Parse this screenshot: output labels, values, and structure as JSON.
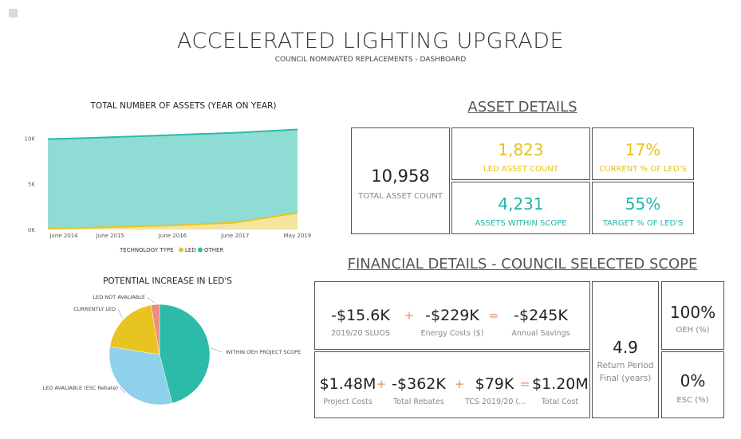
{
  "header": {
    "title": "ACCELERATED LIGHTING UPGRADE",
    "subtitle": "COUNCIL NOMINATED REPLACEMENTS  - DASHBOARD"
  },
  "colors": {
    "led": "#e8c421",
    "other": "#2bbba8",
    "other_fill": "#8fdcd4",
    "led_fill": "#f3e4a0",
    "pie_other": "#8fd0ea",
    "pie_na": "#ee8a7e",
    "operator": "#f08a5a"
  },
  "chart_data": [
    {
      "type": "area",
      "title": "TOTAL NUMBER OF ASSETS (YEAR ON YEAR)",
      "categories": [
        "June 2014",
        "June 2015",
        "June 2016",
        "June 2017",
        "May 2019"
      ],
      "yticks": [
        "0K",
        "5K",
        "10K"
      ],
      "ylim": [
        0,
        11000
      ],
      "legend_title": "TECHNOLOGY TYPE",
      "legend_position": "bottom",
      "series": [
        {
          "name": "LED",
          "values": [
            100,
            250,
            450,
            750,
            1823
          ]
        },
        {
          "name": "OTHER",
          "values": [
            9800,
            9850,
            9900,
            9850,
            9135
          ]
        }
      ]
    },
    {
      "type": "pie",
      "title": "POTENTIAL INCREASE IN LED'S",
      "slices": [
        {
          "label": "WITHIN OEH PROJECT SCOPE",
          "value": 4231
        },
        {
          "label": "LED AVALIABLE (ESC Rebate)",
          "value": 2900
        },
        {
          "label": "CURRENTLY LED",
          "value": 1823
        },
        {
          "label": "LED NOT AVALIABLE",
          "value": 250
        }
      ]
    }
  ],
  "asset_details": {
    "heading": "ASSET DETAILS",
    "total": {
      "value": "10,958",
      "label": "TOTAL ASSET COUNT"
    },
    "led_count": {
      "value": "1,823",
      "label": "LED ASSET COUNT"
    },
    "current_pct": {
      "value": "17%",
      "label": "CURRENT % OF LED'S"
    },
    "within_scope": {
      "value": "4,231",
      "label": "ASSETS WITHIN SCOPE"
    },
    "target_pct": {
      "value": "55%",
      "label": "TARGET % OF LED'S"
    }
  },
  "financial": {
    "heading": "FINANCIAL DETAILS - COUNCIL SELECTED SCOPE",
    "row1": [
      {
        "value": "-$15.6K",
        "label": "2019/20 SLUOS"
      },
      {
        "value": "-$229K",
        "label": "Energy Costs ($)"
      },
      {
        "value": "-$245K",
        "label": "Annual Savings"
      }
    ],
    "row1_ops": [
      "+",
      "="
    ],
    "row2": [
      {
        "value": "$1.48M",
        "label": "Project Costs"
      },
      {
        "value": "-$362K",
        "label": "Total Rebates"
      },
      {
        "value": "$79K",
        "label": "TCS 2019/20 (..."
      },
      {
        "value": "$1.20M",
        "label": "Total Cost"
      }
    ],
    "row2_ops": [
      "+",
      "+",
      "="
    ],
    "return_period": {
      "value": "4.9",
      "label1": "Return Period",
      "label2": "Final (years)"
    },
    "oeh": {
      "value": "100%",
      "label": "OEH (%)"
    },
    "esc": {
      "value": "0%",
      "label": "ESC (%)"
    }
  }
}
